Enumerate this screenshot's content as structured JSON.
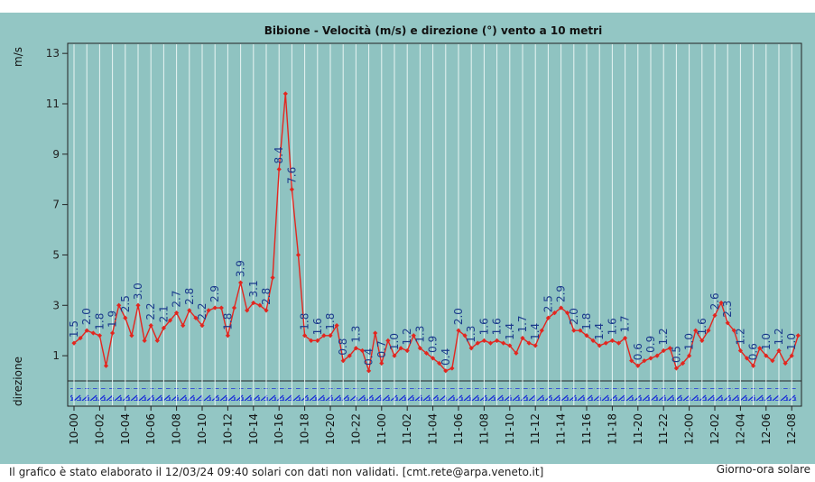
{
  "chart_data": {
    "type": "line",
    "title": "Bibione - Velocità (m/s) e direzione (°) vento a 10 metri",
    "y_label": "m/s",
    "direction_label": "direzione",
    "x_label": "Giorno-ora solare",
    "footer": "Il grafico è stato elaborato il 12/03/24 09:40 solari con dati non validati. [cmt.rete@arpa.veneto.it]",
    "ylim": [
      0,
      13.4
    ],
    "yticks": [
      1,
      3,
      5,
      7,
      9,
      11,
      13
    ],
    "color": "#e3261f",
    "categories": [
      "10-00",
      null,
      null,
      null,
      "10-02",
      null,
      null,
      null,
      "10-04",
      null,
      null,
      null,
      "10-06",
      null,
      null,
      null,
      "10-08",
      null,
      null,
      null,
      "10-10",
      null,
      null,
      null,
      "10-12",
      null,
      null,
      null,
      "10-14",
      null,
      null,
      null,
      "10-16",
      null,
      null,
      null,
      "10-18",
      null,
      null,
      null,
      "10-20",
      null,
      null,
      null,
      "10-22",
      null,
      null,
      null,
      "11-00",
      null,
      null,
      null,
      "11-02",
      null,
      null,
      null,
      "11-04",
      null,
      null,
      null,
      "11-06",
      null,
      null,
      null,
      "11-08",
      null,
      null,
      null,
      "11-10",
      null,
      null,
      null,
      "11-12",
      null,
      null,
      null,
      "11-14",
      null,
      null,
      null,
      "11-16",
      null,
      null,
      null,
      "11-18",
      null,
      null,
      null,
      "11-20",
      null,
      null,
      null,
      "11-22",
      null,
      null,
      null,
      "12-00",
      null,
      null,
      null,
      "12-02",
      null,
      null,
      null,
      "12-04",
      null,
      null,
      null,
      "12-06",
      null,
      null,
      null,
      "12-08",
      null
    ],
    "values": [
      1.5,
      1.7,
      2.0,
      1.9,
      1.8,
      0.6,
      1.9,
      3.0,
      2.5,
      1.8,
      3.0,
      1.6,
      2.2,
      1.6,
      2.1,
      2.4,
      2.7,
      2.2,
      2.8,
      2.5,
      2.2,
      2.8,
      2.9,
      2.9,
      1.8,
      2.9,
      3.9,
      2.8,
      3.1,
      3.0,
      2.8,
      4.1,
      8.4,
      11.4,
      7.6,
      5.0,
      1.8,
      1.6,
      1.6,
      1.8,
      1.8,
      2.2,
      0.8,
      1.0,
      1.3,
      1.2,
      0.4,
      1.9,
      0.7,
      1.6,
      1.0,
      1.3,
      1.2,
      1.8,
      1.3,
      1.1,
      0.9,
      0.7,
      0.4,
      0.5,
      2.0,
      1.8,
      1.3,
      1.5,
      1.6,
      1.5,
      1.6,
      1.5,
      1.4,
      1.1,
      1.7,
      1.5,
      1.4,
      2.0,
      2.5,
      2.7,
      2.9,
      2.7,
      2.0,
      2.0,
      1.8,
      1.6,
      1.4,
      1.5,
      1.6,
      1.5,
      1.7,
      0.8,
      0.6,
      0.8,
      0.9,
      1.0,
      1.2,
      1.3,
      0.5,
      0.7,
      1.0,
      2.0,
      1.6,
      2.0,
      2.6,
      3.1,
      2.3,
      2.0,
      1.2,
      0.9,
      0.6,
      1.3,
      1.0,
      0.8,
      1.2,
      0.7,
      1.0,
      1.8
    ],
    "value_labels": [
      "1.5",
      null,
      "2.0",
      null,
      "1.8",
      null,
      "1.9",
      null,
      "2.5",
      null,
      "3.0",
      null,
      "2.2",
      null,
      "2.1",
      null,
      "2.7",
      null,
      "2.8",
      null,
      "2.2",
      null,
      "2.9",
      null,
      "1.8",
      null,
      "3.9",
      null,
      "3.1",
      null,
      "2.8",
      null,
      "8.4",
      null,
      "7.6",
      null,
      "1.8",
      null,
      "1.6",
      null,
      "1.8",
      null,
      "0.8",
      null,
      "1.3",
      null,
      "0.4",
      null,
      "0.7",
      null,
      "1.0",
      null,
      "1.2",
      null,
      "1.3",
      null,
      "0.9",
      null,
      "0.4",
      null,
      "2.0",
      null,
      "1.3",
      null,
      "1.6",
      null,
      "1.6",
      null,
      "1.4",
      null,
      "1.7",
      null,
      "1.4",
      null,
      "2.5",
      null,
      "2.9",
      null,
      "2.0",
      null,
      "1.8",
      null,
      "1.4",
      null,
      "1.6",
      null,
      "1.7",
      null,
      "0.6",
      null,
      "0.9",
      null,
      "1.2",
      null,
      "0.5",
      null,
      "1.0",
      null,
      "1.6",
      null,
      "2.6",
      null,
      "2.3",
      null,
      "1.2",
      null,
      "0.6",
      null,
      "1.0",
      null,
      "1.2",
      null,
      "1.0",
      null
    ]
  }
}
